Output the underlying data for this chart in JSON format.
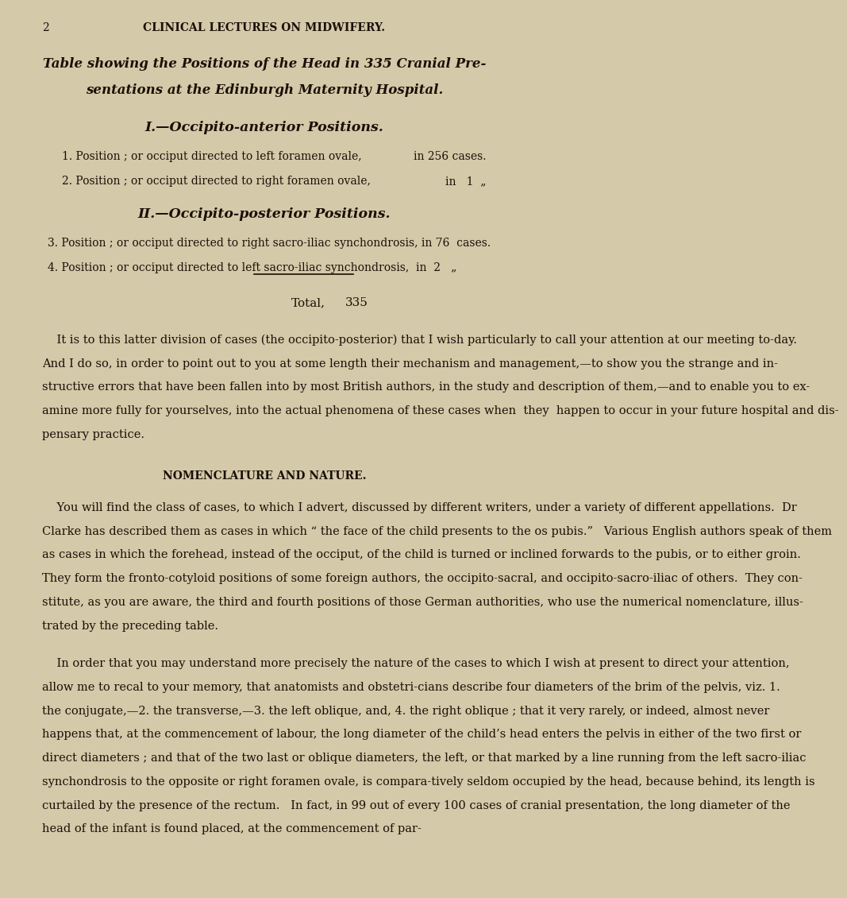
{
  "bg_color": "#d4c9a8",
  "text_color": "#1a1008",
  "page_number": "2",
  "header": "CLINICAL LECTURES ON MIDWIFERY.",
  "title_line1": "Table showing the Positions of the Head in 335 Cranial Pre-",
  "title_line2": "sentations at the Edinburgh Maternity Hospital.",
  "section1_header": "I.—Occipito-anterior Positions.",
  "section1_item1": "1. Position ; or occiput directed to left foramen ovale,",
  "section1_item1_right": "in 256 cases.",
  "section1_item2": "2. Position ; or occiput directed to right foramen ovale,",
  "section1_item2_right": "in   1  „",
  "section2_header": "II.—Occipito-posterior Positions.",
  "section2_item1": "3. Position ; or occiput directed to right sacro-iliac synchondrosis, in 76  cases.",
  "section2_item2": "4. Position ; or occiput directed to left sacro-iliac synchondrosis,  in  2   „",
  "total_label": "Total,",
  "total_value": "335",
  "p1_lines": [
    "    It is to this latter division of cases (the occipito-posterior) that I wish particularly to call your attention at our meeting to-day.",
    "And I do so, in order to point out to you at some length their mechanism and management,—to show you the strange and in-",
    "structive errors that have been fallen into by most British authors, in the study and description of them,—and to enable you to ex-",
    "amine more fully for yourselves, into the actual phenomena of these cases when  they  happen to occur in your future hospital and dis-",
    "pensary practice."
  ],
  "nomenclature_heading": "NOMENCLATURE AND NATURE.",
  "p2_lines": [
    "    You will find the class of cases, to which I advert, discussed by different writers, under a variety of different appellations.  Dr",
    "Clarke has described them as cases in which “ the face of the child presents to the os pubis.”   Various English authors speak of them",
    "as cases in which the forehead, instead of the occiput, of the child is turned or inclined forwards to the pubis, or to either groin.",
    "They form the fronto-cotyloid positions of some foreign authors, the occipito-sacral, and occipito-sacro-iliac of others.  They con-",
    "stitute, as you are aware, the third and fourth positions of those German authorities, who use the numerical nomenclature, illus-",
    "trated by the preceding table."
  ],
  "p3_lines": [
    "    In order that you may understand more precisely the nature of the cases to which I wish at present to direct your attention,",
    "allow me to recal to your memory, that anatomists and obstetri-cians describe four diameters of the brim of the pelvis, viz. 1.",
    "the conjugate,—2. the transverse,—3. the left oblique, and, 4. the right oblique ; that it very rarely, or indeed, almost never",
    "happens that, at the commencement of labour, the long diameter of the child’s head enters the pelvis in either of the two first or",
    "direct diameters ; and that of the two last or oblique diameters, the left, or that marked by a line running from the left sacro-iliac",
    "synchondrosis to the opposite or right foramen ovale, is compara-tively seldom occupied by the head, because behind, its length is",
    "curtailed by the presence of the rectum.   In fact, in 99 out of every 100 cases of cranial presentation, the long diameter of the",
    "head of the infant is found placed, at the commencement of par-"
  ]
}
